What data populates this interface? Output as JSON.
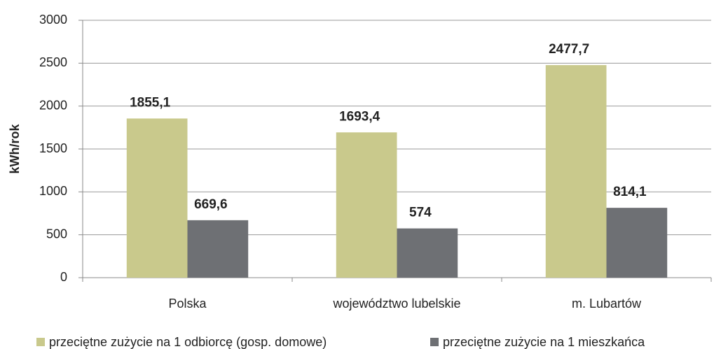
{
  "chart_data": {
    "type": "bar",
    "y_label": "kWh/rok",
    "categories": [
      "Polska",
      "województwo lubelskie",
      "m. Lubartów"
    ],
    "series": [
      {
        "name": "przeciętne zużycie na 1 odbiorcę (gosp. domowe)",
        "color": "#c9c98c",
        "values": [
          1855.1,
          1693.4,
          2477.7
        ],
        "value_labels": [
          "1855,1",
          "1693,4",
          "2477,7"
        ]
      },
      {
        "name": "przeciętne zużycie na 1 mieszkańca",
        "color": "#6e7074",
        "values": [
          669.6,
          574,
          814.1
        ],
        "value_labels": [
          "669,6",
          "574",
          "814,1"
        ]
      }
    ],
    "ylim": [
      0,
      3000
    ],
    "yticks": [
      0,
      500,
      1000,
      1500,
      2000,
      2500,
      3000
    ],
    "grid": true
  }
}
